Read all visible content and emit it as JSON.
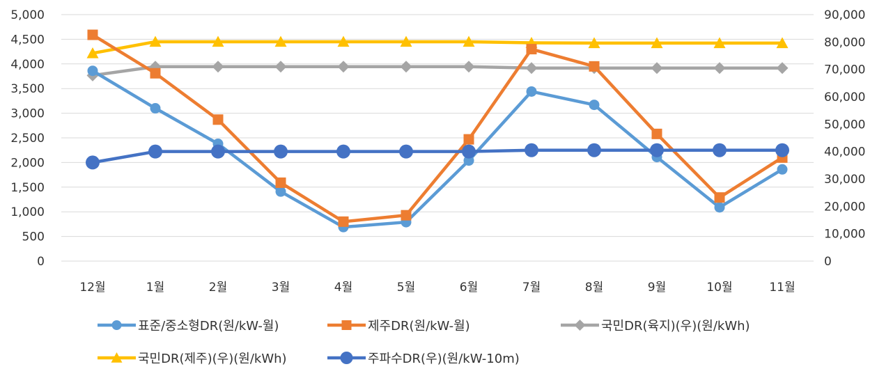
{
  "chart_data": {
    "type": "line",
    "categories": [
      "12월",
      "1월",
      "2월",
      "3월",
      "4월",
      "5월",
      "6월",
      "7월",
      "8월",
      "9월",
      "10월",
      "11월"
    ],
    "axes": {
      "left": {
        "ylim": [
          0,
          5000
        ],
        "ticks": [
          0,
          500,
          1000,
          1500,
          2000,
          2500,
          3000,
          3500,
          4000,
          4500,
          5000
        ],
        "tick_labels": [
          "0",
          "500",
          "1,000",
          "1,500",
          "2,000",
          "2,500",
          "3,000",
          "3,500",
          "4,000",
          "4,500",
          "5,000"
        ]
      },
      "right": {
        "ylim": [
          0,
          90000
        ],
        "ticks": [
          0,
          10000,
          20000,
          30000,
          40000,
          50000,
          60000,
          70000,
          80000,
          90000
        ],
        "tick_labels": [
          "0",
          "10,000",
          "20,000",
          "30,000",
          "40,000",
          "50,000",
          "60,000",
          "70,000",
          "80,000",
          "90,000"
        ]
      }
    },
    "grid": true,
    "legend_position": "bottom",
    "series": [
      {
        "name": "표준/중소형DR(원/kW-월)",
        "axis": "left",
        "color": "#5B9BD5",
        "marker": "circle",
        "values": [
          3860,
          3100,
          2380,
          1410,
          690,
          790,
          2040,
          3440,
          3170,
          2110,
          1090,
          1860
        ]
      },
      {
        "name": "제주DR(원/kW-월)",
        "axis": "left",
        "color": "#ED7D31",
        "marker": "square",
        "values": [
          4590,
          3810,
          2870,
          1590,
          800,
          930,
          2470,
          4300,
          3950,
          2580,
          1290,
          2100
        ]
      },
      {
        "name": "국민DR(육지)(우)(원/kWh)",
        "axis": "right",
        "color": "#A5A5A5",
        "marker": "diamond",
        "values": [
          67800,
          71000,
          71000,
          71000,
          71000,
          71000,
          71000,
          70500,
          70500,
          70500,
          70500,
          70500
        ]
      },
      {
        "name": "국민DR(제주)(우)(원/kWh)",
        "axis": "right",
        "color": "#FFC000",
        "marker": "triangle",
        "values": [
          75900,
          80100,
          80100,
          80100,
          80100,
          80100,
          80100,
          79700,
          79600,
          79600,
          79600,
          79600
        ]
      },
      {
        "name": "주파수DR(우)(원/kW-10m)",
        "axis": "right",
        "color": "#4472C4",
        "marker": "circle",
        "values": [
          36000,
          40000,
          40000,
          40000,
          40000,
          40000,
          40000,
          40500,
          40500,
          40500,
          40500,
          40500
        ]
      }
    ]
  }
}
